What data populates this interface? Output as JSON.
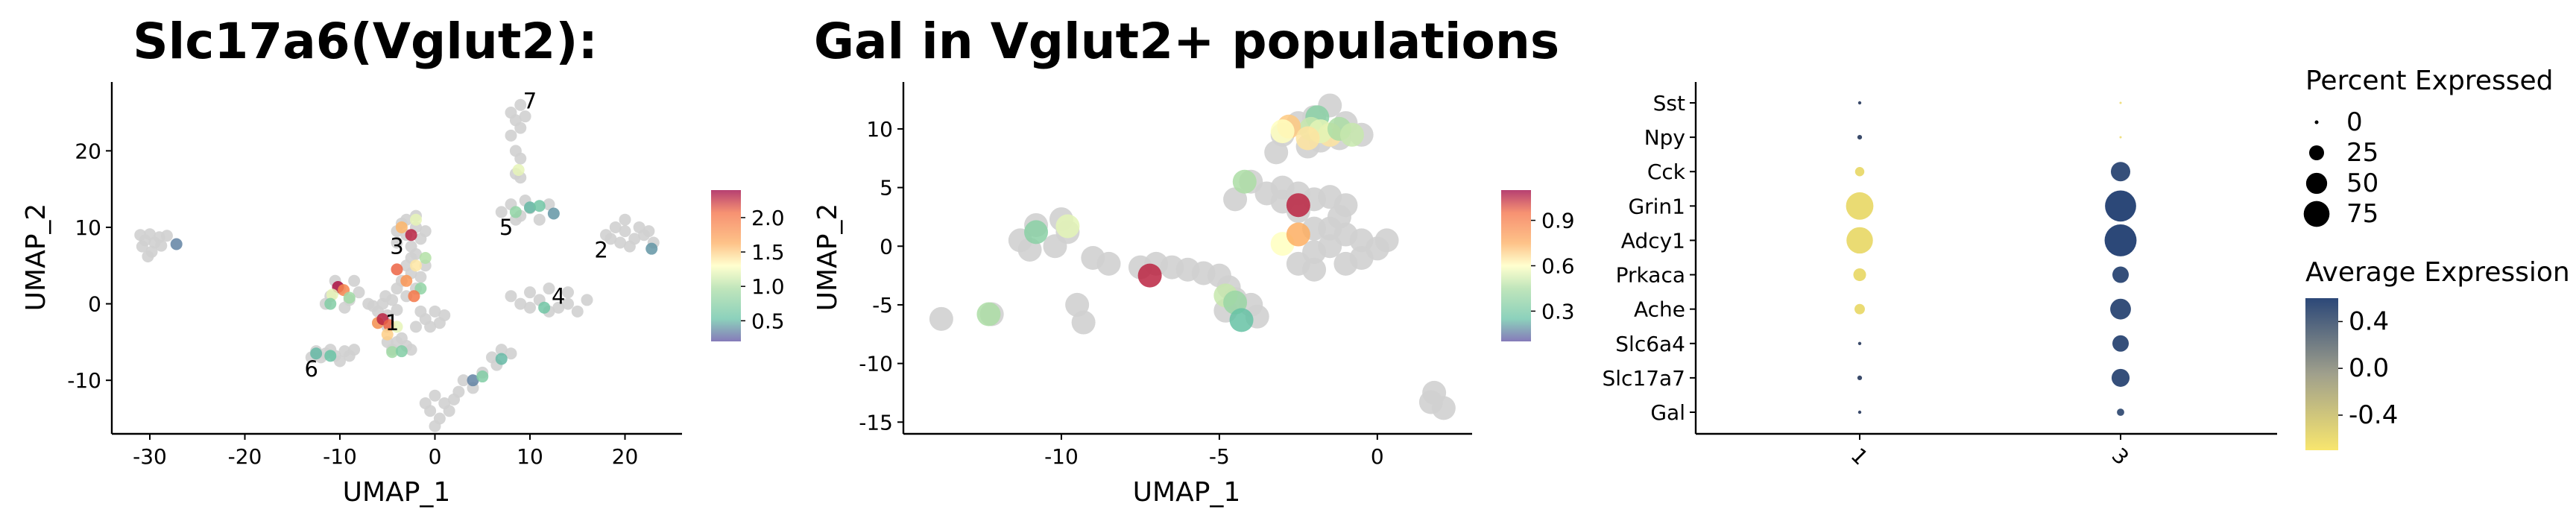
{
  "chart_data": [
    {
      "type": "scatter",
      "title": "Slc17a6(Vglut2):",
      "xlabel": "UMAP_1",
      "ylabel": "UMAP_2",
      "xlim": [
        -34,
        26
      ],
      "ylim": [
        -17,
        29
      ],
      "xticks": [
        -30,
        -20,
        -10,
        0,
        10,
        20
      ],
      "yticks": [
        -10,
        0,
        10,
        20
      ],
      "colorbar": {
        "min": 0.2,
        "max": 2.4,
        "ticks": [
          0.5,
          1.0,
          1.5,
          2.0
        ]
      },
      "cluster_labels": [
        {
          "label": "1",
          "x": -4.5,
          "y": -2.5
        },
        {
          "label": "2",
          "x": 17.5,
          "y": 7
        },
        {
          "label": "3",
          "x": -4,
          "y": 7.5
        },
        {
          "label": "4",
          "x": 13,
          "y": 1
        },
        {
          "label": "5",
          "x": 7.5,
          "y": 10
        },
        {
          "label": "6",
          "x": -13,
          "y": -8.5
        },
        {
          "label": "7",
          "x": 10,
          "y": 26.5
        }
      ],
      "grey_points": [
        [
          -31,
          9
        ],
        [
          -30.5,
          8.3
        ],
        [
          -30,
          9.1
        ],
        [
          -29.5,
          8
        ],
        [
          -29,
          8.7
        ],
        [
          -28.8,
          7.6
        ],
        [
          -30.8,
          7.5
        ],
        [
          -29.8,
          6.8
        ],
        [
          -28.2,
          8.9
        ],
        [
          -30.2,
          6.2
        ],
        [
          -11,
          -6
        ],
        [
          -12,
          -7
        ],
        [
          -10.5,
          -6.8
        ],
        [
          -9.5,
          -6.2
        ],
        [
          -11.5,
          -6.5
        ],
        [
          -10,
          -7.5
        ],
        [
          -12.5,
          -6.2
        ],
        [
          -9,
          -6.8
        ],
        [
          -8.5,
          -6
        ],
        [
          -13,
          -7
        ],
        [
          -6,
          -1
        ],
        [
          -5.5,
          0
        ],
        [
          -5,
          -1.5
        ],
        [
          -4.5,
          0.5
        ],
        [
          -6.5,
          -0.3
        ],
        [
          -5.2,
          1
        ],
        [
          -7,
          0
        ],
        [
          -4,
          -0.8
        ],
        [
          -6,
          -2.5
        ],
        [
          -5,
          -3
        ],
        [
          -4,
          8
        ],
        [
          -3,
          9
        ],
        [
          -2,
          10
        ],
        [
          -3.5,
          10.5
        ],
        [
          -2.5,
          7.5
        ],
        [
          -1.5,
          8.5
        ],
        [
          -3,
          11
        ],
        [
          -2,
          11.5
        ],
        [
          -1,
          9.5
        ],
        [
          -4,
          9.5
        ],
        [
          -3.5,
          3
        ],
        [
          -2.5,
          4
        ],
        [
          -2,
          2
        ],
        [
          -3,
          5
        ],
        [
          -1.5,
          3.5
        ],
        [
          -2.5,
          6
        ],
        [
          -3,
          1
        ],
        [
          -1,
          5
        ],
        [
          -4,
          2
        ],
        [
          -2,
          6.5
        ],
        [
          -10,
          2
        ],
        [
          -11,
          1
        ],
        [
          -9,
          0.5
        ],
        [
          -10.5,
          3
        ],
        [
          -9.5,
          -0.5
        ],
        [
          -8,
          1.5
        ],
        [
          -11.5,
          0
        ],
        [
          -8.5,
          3
        ],
        [
          -4,
          -5
        ],
        [
          -3,
          -5.5
        ],
        [
          -4.5,
          -6
        ],
        [
          -3.5,
          -4.5
        ],
        [
          -2.5,
          -6
        ],
        [
          -5,
          -5
        ],
        [
          -1,
          -2
        ],
        [
          0,
          -1
        ],
        [
          -1.5,
          -1
        ],
        [
          0.5,
          -2.5
        ],
        [
          -0.5,
          -3
        ],
        [
          1,
          -1.5
        ],
        [
          -2,
          -3
        ],
        [
          0,
          -12
        ],
        [
          -0.5,
          -14
        ],
        [
          1,
          -13
        ],
        [
          0.5,
          -15
        ],
        [
          -1,
          -13
        ],
        [
          1.5,
          -14
        ],
        [
          0,
          -16
        ],
        [
          2,
          -12.5
        ],
        [
          3,
          -10
        ],
        [
          4,
          -11
        ],
        [
          5,
          -9
        ],
        [
          2.5,
          -11.5
        ],
        [
          6,
          -7
        ],
        [
          7,
          -6
        ],
        [
          6.5,
          -8
        ],
        [
          8,
          -6.5
        ],
        [
          8,
          1
        ],
        [
          9,
          0
        ],
        [
          10,
          1.5
        ],
        [
          11,
          0.5
        ],
        [
          12,
          2
        ],
        [
          13,
          -0.5
        ],
        [
          14,
          0
        ],
        [
          15,
          -1
        ],
        [
          16,
          0.5
        ],
        [
          14,
          1.5
        ],
        [
          12,
          -1
        ],
        [
          10,
          -0.5
        ],
        [
          7,
          12
        ],
        [
          8,
          13
        ],
        [
          9,
          11.5
        ],
        [
          10,
          12.5
        ],
        [
          11,
          11
        ],
        [
          8.5,
          11
        ],
        [
          9.5,
          13.5
        ],
        [
          12,
          13
        ],
        [
          8,
          25
        ],
        [
          9,
          26
        ],
        [
          8.5,
          24
        ],
        [
          9.5,
          24.5
        ],
        [
          8,
          22
        ],
        [
          9,
          23
        ],
        [
          8.5,
          20
        ],
        [
          9,
          19
        ],
        [
          8.5,
          17
        ],
        [
          9,
          16.5
        ],
        [
          18,
          9
        ],
        [
          19,
          10
        ],
        [
          20,
          9.5
        ],
        [
          21,
          8.5
        ],
        [
          22,
          9
        ],
        [
          23,
          8
        ],
        [
          19.5,
          8
        ],
        [
          20.5,
          7.5
        ],
        [
          21.5,
          10
        ],
        [
          22.5,
          9.5
        ],
        [
          18.5,
          8.5
        ],
        [
          20,
          11
        ]
      ],
      "expr_points": [
        [
          -27.2,
          7.8,
          0.35
        ],
        [
          -10.2,
          2.2,
          2.35
        ],
        [
          -9.6,
          1.8,
          1.9
        ],
        [
          -10.8,
          1.2,
          1.2
        ],
        [
          -9,
          0.8,
          0.9
        ],
        [
          -11,
          0,
          0.7
        ],
        [
          -6,
          -2.5,
          1.8
        ],
        [
          -5.5,
          -2,
          2.3
        ],
        [
          -4.8,
          -2.8,
          2.1
        ],
        [
          -5,
          -4,
          1.5
        ],
        [
          -4,
          -3,
          1.2
        ],
        [
          -2.5,
          9,
          2.3
        ],
        [
          -3.5,
          10,
          1.6
        ],
        [
          -2,
          11,
          1.2
        ],
        [
          -4,
          4.5,
          2.1
        ],
        [
          -3,
          3,
          1.8
        ],
        [
          -2,
          5,
          1.4
        ],
        [
          -1,
          6,
          1.0
        ],
        [
          -1.5,
          2,
          0.8
        ],
        [
          -2.2,
          1,
          2.0
        ],
        [
          -4.5,
          -6.3,
          0.9
        ],
        [
          -3.5,
          -6.2,
          0.7
        ],
        [
          -12.5,
          -6.5,
          0.5
        ],
        [
          -11,
          -6.8,
          0.55
        ],
        [
          4,
          -10,
          0.35
        ],
        [
          5,
          -9.5,
          0.7
        ],
        [
          7,
          -7.2,
          0.5
        ],
        [
          8.5,
          12,
          0.8
        ],
        [
          10,
          12.6,
          0.5
        ],
        [
          11,
          12.8,
          0.6
        ],
        [
          12.5,
          11.8,
          0.4
        ],
        [
          8.8,
          17.5,
          1.2
        ],
        [
          22.8,
          7.2,
          0.4
        ],
        [
          11.5,
          -0.5,
          0.6
        ]
      ]
    },
    {
      "type": "scatter",
      "title": "Gal in Vglut2+ populations",
      "xlabel": "UMAP_1",
      "ylabel": "UMAP_2",
      "xlim": [
        -15,
        3
      ],
      "ylim": [
        -16,
        14
      ],
      "xticks": [
        -10,
        -5,
        0
      ],
      "yticks": [
        -15,
        -10,
        -5,
        0,
        5,
        10
      ],
      "colorbar": {
        "min": 0.1,
        "max": 1.1,
        "ticks": [
          0.3,
          0.6,
          0.9
        ]
      },
      "grey_points": [
        [
          -13.8,
          -6.2
        ],
        [
          -12.2,
          -5.8
        ],
        [
          -9.5,
          -5
        ],
        [
          -9.3,
          -6.5
        ],
        [
          -11.3,
          0.5
        ],
        [
          -10.8,
          1.8
        ],
        [
          -10,
          2.3
        ],
        [
          -9.8,
          1.2
        ],
        [
          -10.2,
          0
        ],
        [
          -11,
          -0.3
        ],
        [
          -9,
          -1
        ],
        [
          -8.5,
          -1.5
        ],
        [
          -7.5,
          -1.8
        ],
        [
          -7,
          -1.5
        ],
        [
          -6.5,
          -1.8
        ],
        [
          -6,
          -2
        ],
        [
          -5.5,
          -2.3
        ],
        [
          -5,
          -2.5
        ],
        [
          -4.7,
          -3.5
        ],
        [
          -4.5,
          -4.5
        ],
        [
          -4,
          -5
        ],
        [
          -3.8,
          -6
        ],
        [
          -4.8,
          -5.5
        ],
        [
          -4.5,
          4
        ],
        [
          -4,
          5.5
        ],
        [
          -3.5,
          4.5
        ],
        [
          -3,
          5
        ],
        [
          -3,
          3.8
        ],
        [
          -2.5,
          4.5
        ],
        [
          -2,
          4
        ],
        [
          -2.5,
          3
        ],
        [
          -2,
          1.5
        ],
        [
          -1.5,
          1.5
        ],
        [
          -1.5,
          4.2
        ],
        [
          -1,
          3.5
        ],
        [
          -1.2,
          2.5
        ],
        [
          -1,
          1
        ],
        [
          -1.5,
          0
        ],
        [
          -0.5,
          0.5
        ],
        [
          0,
          -0.2
        ],
        [
          0.3,
          0.5
        ],
        [
          -2,
          -0.5
        ],
        [
          -1,
          -1.5
        ],
        [
          -2.5,
          -1.5
        ],
        [
          -0.5,
          -1
        ],
        [
          -2,
          -2
        ],
        [
          -3,
          9.5
        ],
        [
          -2.5,
          10.5
        ],
        [
          -2,
          11
        ],
        [
          -1.5,
          12
        ],
        [
          -1,
          10.5
        ],
        [
          -0.5,
          9.5
        ],
        [
          -3.2,
          8
        ],
        [
          -2.2,
          8.5
        ],
        [
          -1.8,
          9
        ],
        [
          -1.2,
          9.2
        ],
        [
          1.8,
          -12.5
        ],
        [
          2.1,
          -13.8
        ],
        [
          1.7,
          -13.3
        ]
      ],
      "expr_points": [
        [
          -12.3,
          -5.8,
          0.45
        ],
        [
          -10.8,
          1.2,
          0.35
        ],
        [
          -9.8,
          1.7,
          0.55
        ],
        [
          -7.2,
          -2.5,
          1.05
        ],
        [
          -4.8,
          -4.2,
          0.5
        ],
        [
          -4.5,
          -4.8,
          0.4
        ],
        [
          -4.3,
          -6.3,
          0.25
        ],
        [
          -4.2,
          5.5,
          0.45
        ],
        [
          -2.5,
          3.5,
          1.05
        ],
        [
          -3,
          0.2,
          0.6
        ],
        [
          -2.5,
          1,
          0.75
        ],
        [
          -1.9,
          11,
          0.35
        ],
        [
          -2.1,
          10,
          0.5
        ],
        [
          -1.5,
          9.5,
          0.65
        ],
        [
          -2.8,
          10.2,
          0.7
        ],
        [
          -3,
          9.8,
          0.6
        ],
        [
          -1.8,
          9.8,
          0.55
        ],
        [
          -1.2,
          10,
          0.45
        ],
        [
          -2.2,
          9.2,
          0.65
        ],
        [
          -0.8,
          9.5,
          0.5
        ]
      ]
    },
    {
      "type": "scatter",
      "subtype": "dotplot",
      "title": "",
      "xlabel": "",
      "ylabel": "",
      "categories_x": [
        "1",
        "3"
      ],
      "categories_y": [
        "Sst",
        "Npy",
        "Cck",
        "Grin1",
        "Adcy1",
        "Prkaca",
        "Ache",
        "Slc6a4",
        "Slc17a7",
        "Gal"
      ],
      "percent_expressed": {
        "1": [
          1,
          2,
          8,
          70,
          65,
          15,
          10,
          1,
          2,
          1
        ],
        "3": [
          0.5,
          0.5,
          35,
          90,
          95,
          25,
          40,
          25,
          30,
          5
        ]
      },
      "average_expression": {
        "1": [
          -0.7,
          -0.7,
          -0.6,
          -0.6,
          -0.6,
          -0.6,
          -0.6,
          -0.7,
          -0.7,
          -0.7
        ],
        "3": [
          -0.7,
          -0.7,
          0.55,
          0.6,
          0.6,
          0.55,
          0.55,
          0.55,
          0.55,
          0.5
        ]
      },
      "legend_size": {
        "title": "Percent Expressed",
        "values": [
          0,
          25,
          50,
          75
        ]
      },
      "legend_color": {
        "title": "Average Expression",
        "min": -0.7,
        "max": 0.6,
        "ticks": [
          0.4,
          0.0,
          -0.4
        ],
        "tick_labels": [
          "0.4",
          "0.0",
          "-0.4"
        ]
      }
    }
  ]
}
